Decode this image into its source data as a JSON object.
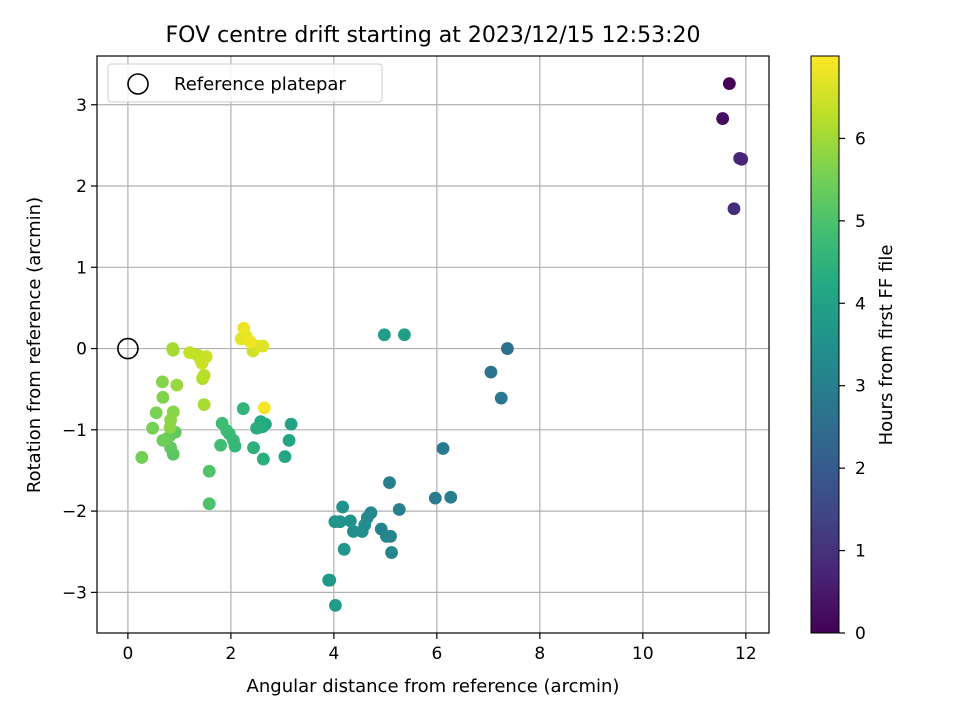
{
  "chart_data": {
    "type": "scatter",
    "title": "FOV centre drift starting at 2023/12/15 12:53:20",
    "xlabel": "Angular distance from reference (arcmin)",
    "ylabel": "Rotation from reference (arcmin)",
    "xlim": [
      -0.6,
      12.45
    ],
    "ylim": [
      -3.5,
      3.6
    ],
    "xticks": [
      0,
      2,
      4,
      6,
      8,
      10,
      12
    ],
    "yticks": [
      -3,
      -2,
      -1,
      0,
      1,
      2,
      3
    ],
    "grid": true,
    "legend": {
      "position": "top-left",
      "entries": [
        "Reference platepar"
      ]
    },
    "reference_point": {
      "x": 0,
      "y": 0
    },
    "colorbar": {
      "label": "Hours from first FF file",
      "colormap": "viridis",
      "range": [
        0,
        7.0
      ],
      "ticks": [
        0,
        1,
        2,
        3,
        4,
        5,
        6
      ]
    },
    "points": [
      {
        "x": 11.68,
        "y": 3.26,
        "c": 0.05
      },
      {
        "x": 11.55,
        "y": 2.83,
        "c": 0.25
      },
      {
        "x": 11.88,
        "y": 2.34,
        "c": 0.7
      },
      {
        "x": 11.92,
        "y": 2.33,
        "c": 0.75
      },
      {
        "x": 11.77,
        "y": 1.72,
        "c": 0.9
      },
      {
        "x": 7.37,
        "y": 0.0,
        "c": 2.6
      },
      {
        "x": 7.05,
        "y": -0.29,
        "c": 2.7
      },
      {
        "x": 7.25,
        "y": -0.61,
        "c": 2.75
      },
      {
        "x": 6.12,
        "y": -1.23,
        "c": 2.85
      },
      {
        "x": 5.97,
        "y": -1.84,
        "c": 2.9
      },
      {
        "x": 6.27,
        "y": -1.83,
        "c": 2.95
      },
      {
        "x": 5.08,
        "y": -1.65,
        "c": 3.0
      },
      {
        "x": 5.27,
        "y": -1.98,
        "c": 3.05
      },
      {
        "x": 4.92,
        "y": -2.22,
        "c": 3.1
      },
      {
        "x": 5.02,
        "y": -2.31,
        "c": 3.15
      },
      {
        "x": 5.1,
        "y": -2.31,
        "c": 3.15
      },
      {
        "x": 5.12,
        "y": -2.51,
        "c": 3.2
      },
      {
        "x": 4.72,
        "y": -2.02,
        "c": 3.25
      },
      {
        "x": 4.65,
        "y": -2.08,
        "c": 3.3
      },
      {
        "x": 4.6,
        "y": -2.17,
        "c": 3.35
      },
      {
        "x": 4.55,
        "y": -2.25,
        "c": 3.4
      },
      {
        "x": 4.38,
        "y": -2.25,
        "c": 3.45
      },
      {
        "x": 4.32,
        "y": -2.12,
        "c": 3.5
      },
      {
        "x": 4.17,
        "y": -1.95,
        "c": 3.5
      },
      {
        "x": 4.12,
        "y": -2.13,
        "c": 3.55
      },
      {
        "x": 4.02,
        "y": -2.13,
        "c": 3.6
      },
      {
        "x": 4.2,
        "y": -2.47,
        "c": 3.65
      },
      {
        "x": 3.9,
        "y": -2.85,
        "c": 3.7
      },
      {
        "x": 3.92,
        "y": -2.85,
        "c": 3.75
      },
      {
        "x": 4.03,
        "y": -3.16,
        "c": 3.8
      },
      {
        "x": 4.98,
        "y": 0.17,
        "c": 3.9
      },
      {
        "x": 5.37,
        "y": 0.17,
        "c": 3.95
      },
      {
        "x": 3.17,
        "y": -0.93,
        "c": 4.05
      },
      {
        "x": 3.13,
        "y": -1.13,
        "c": 4.1
      },
      {
        "x": 3.05,
        "y": -1.33,
        "c": 4.15
      },
      {
        "x": 2.67,
        "y": -0.93,
        "c": 4.2
      },
      {
        "x": 2.58,
        "y": -0.9,
        "c": 4.25
      },
      {
        "x": 2.62,
        "y": -0.96,
        "c": 4.25
      },
      {
        "x": 2.55,
        "y": -0.97,
        "c": 4.3
      },
      {
        "x": 2.5,
        "y": -0.98,
        "c": 4.35
      },
      {
        "x": 2.63,
        "y": -1.36,
        "c": 4.4
      },
      {
        "x": 2.44,
        "y": -1.22,
        "c": 4.45
      },
      {
        "x": 2.24,
        "y": -0.74,
        "c": 4.55
      },
      {
        "x": 2.08,
        "y": -1.2,
        "c": 4.6
      },
      {
        "x": 2.05,
        "y": -1.13,
        "c": 4.65
      },
      {
        "x": 1.97,
        "y": -1.05,
        "c": 4.7
      },
      {
        "x": 1.92,
        "y": -1.01,
        "c": 4.75
      },
      {
        "x": 1.83,
        "y": -0.92,
        "c": 4.8
      },
      {
        "x": 1.8,
        "y": -1.19,
        "c": 4.85
      },
      {
        "x": 1.58,
        "y": -1.91,
        "c": 5.0
      },
      {
        "x": 1.58,
        "y": -1.51,
        "c": 5.05
      },
      {
        "x": 0.88,
        "y": -1.3,
        "c": 5.2
      },
      {
        "x": 0.83,
        "y": -1.22,
        "c": 5.25
      },
      {
        "x": 0.92,
        "y": -1.03,
        "c": 5.3
      },
      {
        "x": 0.82,
        "y": -1.07,
        "c": 5.35
      },
      {
        "x": 0.73,
        "y": -1.12,
        "c": 5.4
      },
      {
        "x": 0.68,
        "y": -1.13,
        "c": 5.45
      },
      {
        "x": 0.27,
        "y": -1.34,
        "c": 5.5
      },
      {
        "x": 0.48,
        "y": -0.98,
        "c": 5.55
      },
      {
        "x": 0.55,
        "y": -0.79,
        "c": 5.6
      },
      {
        "x": 0.68,
        "y": -0.6,
        "c": 5.65
      },
      {
        "x": 0.67,
        "y": -0.41,
        "c": 5.7
      },
      {
        "x": 0.88,
        "y": -0.78,
        "c": 5.75
      },
      {
        "x": 0.83,
        "y": -0.88,
        "c": 5.8
      },
      {
        "x": 0.82,
        "y": -0.97,
        "c": 5.8
      },
      {
        "x": 0.95,
        "y": -0.45,
        "c": 5.9
      },
      {
        "x": 0.88,
        "y": -0.02,
        "c": 6.0
      },
      {
        "x": 0.87,
        "y": 0.0,
        "c": 6.05
      },
      {
        "x": 1.48,
        "y": -0.69,
        "c": 6.1
      },
      {
        "x": 1.45,
        "y": -0.37,
        "c": 6.2
      },
      {
        "x": 1.48,
        "y": -0.33,
        "c": 6.25
      },
      {
        "x": 1.35,
        "y": -0.08,
        "c": 6.3
      },
      {
        "x": 1.2,
        "y": -0.05,
        "c": 6.35
      },
      {
        "x": 1.42,
        "y": -0.15,
        "c": 6.4
      },
      {
        "x": 1.52,
        "y": -0.1,
        "c": 6.45
      },
      {
        "x": 1.44,
        "y": -0.18,
        "c": 6.45
      },
      {
        "x": 2.43,
        "y": -0.03,
        "c": 6.5
      },
      {
        "x": 2.52,
        "y": 0.03,
        "c": 6.6
      },
      {
        "x": 2.62,
        "y": 0.03,
        "c": 6.65
      },
      {
        "x": 2.2,
        "y": 0.12,
        "c": 6.7
      },
      {
        "x": 2.3,
        "y": 0.15,
        "c": 6.75
      },
      {
        "x": 2.25,
        "y": 0.25,
        "c": 6.8
      },
      {
        "x": 2.38,
        "y": 0.08,
        "c": 6.85
      },
      {
        "x": 2.65,
        "y": -0.73,
        "c": 6.9
      }
    ]
  }
}
